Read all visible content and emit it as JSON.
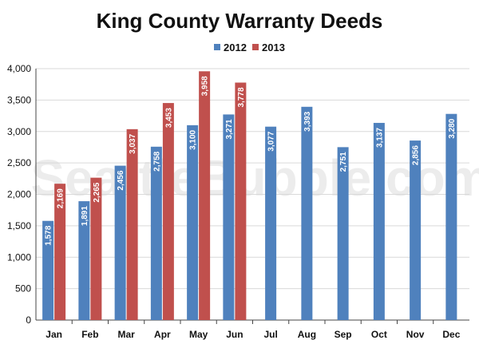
{
  "chart_data": {
    "type": "bar",
    "title": "King County Warranty Deeds",
    "categories": [
      "Jan",
      "Feb",
      "Mar",
      "Apr",
      "May",
      "Jun",
      "Jul",
      "Aug",
      "Sep",
      "Oct",
      "Nov",
      "Dec"
    ],
    "series": [
      {
        "name": "2012",
        "color": "#4f81bd",
        "values": [
          1578,
          1891,
          2456,
          2758,
          3100,
          3271,
          3077,
          3393,
          2751,
          3137,
          2856,
          3280
        ],
        "labels": [
          "1,578",
          "1,891",
          "2,456",
          "2,758",
          "3,100",
          "3,271",
          "3,077",
          "3,393",
          "2,751",
          "3,137",
          "2,856",
          "3,280"
        ]
      },
      {
        "name": "2013",
        "color": "#c0504d",
        "values": [
          2169,
          2265,
          3037,
          3453,
          3958,
          3778,
          null,
          null,
          null,
          null,
          null,
          null
        ],
        "labels": [
          "2,169",
          "2,265",
          "3,037",
          "3,453",
          "3,958",
          "3,778",
          null,
          null,
          null,
          null,
          null,
          null
        ]
      }
    ],
    "ylim": [
      0,
      4000
    ],
    "yticks": [
      0,
      500,
      1000,
      1500,
      2000,
      2500,
      3000,
      3500,
      4000
    ],
    "ytick_labels": [
      "0",
      "500",
      "1,000",
      "1,500",
      "2,000",
      "2,500",
      "3,000",
      "3,500",
      "4,000"
    ],
    "grid": true,
    "legend_position": "top-center",
    "xlabel": "",
    "ylabel": ""
  },
  "watermark": "SeattleBubble.com"
}
